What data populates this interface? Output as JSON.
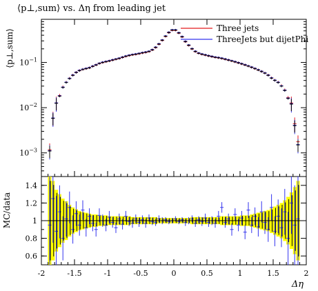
{
  "chart_data": [
    {
      "type": "scatter",
      "title": "⟨p⊥,sum⟩ vs. Δη from leading jet",
      "ylabel": "⟨p⊥,sum⟩",
      "yscale": "log",
      "ylim": [
        0.0003,
        0.9
      ],
      "xlim": [
        -2,
        2
      ],
      "yticks": [
        {
          "v": 0.001,
          "base": "10",
          "exp": "−3"
        },
        {
          "v": 0.01,
          "base": "10",
          "exp": "−2"
        },
        {
          "v": 0.1,
          "base": "10",
          "exp": "−1"
        }
      ],
      "legend_position": "top-right",
      "x": [
        -1.875,
        -1.825,
        -1.775,
        -1.725,
        -1.675,
        -1.625,
        -1.575,
        -1.525,
        -1.475,
        -1.425,
        -1.375,
        -1.325,
        -1.275,
        -1.225,
        -1.175,
        -1.125,
        -1.075,
        -1.025,
        -0.975,
        -0.925,
        -0.875,
        -0.825,
        -0.775,
        -0.725,
        -0.675,
        -0.625,
        -0.575,
        -0.525,
        -0.475,
        -0.425,
        -0.375,
        -0.325,
        -0.275,
        -0.225,
        -0.175,
        -0.125,
        -0.075,
        -0.025,
        0.025,
        0.075,
        0.125,
        0.175,
        0.225,
        0.275,
        0.325,
        0.375,
        0.425,
        0.475,
        0.525,
        0.575,
        0.625,
        0.675,
        0.725,
        0.775,
        0.825,
        0.875,
        0.925,
        0.975,
        1.025,
        1.075,
        1.125,
        1.175,
        1.225,
        1.275,
        1.325,
        1.375,
        1.425,
        1.475,
        1.525,
        1.575,
        1.625,
        1.675,
        1.725,
        1.775,
        1.825,
        1.875
      ],
      "data_values": [
        0.0011,
        0.0058,
        0.0125,
        0.018,
        0.028,
        0.036,
        0.044,
        0.052,
        0.06,
        0.066,
        0.07,
        0.073,
        0.076,
        0.082,
        0.088,
        0.095,
        0.1,
        0.104,
        0.108,
        0.113,
        0.118,
        0.123,
        0.13,
        0.137,
        0.143,
        0.148,
        0.152,
        0.157,
        0.163,
        0.168,
        0.175,
        0.19,
        0.215,
        0.255,
        0.31,
        0.38,
        0.46,
        0.52,
        0.52,
        0.45,
        0.37,
        0.29,
        0.24,
        0.2,
        0.175,
        0.16,
        0.152,
        0.146,
        0.14,
        0.135,
        0.13,
        0.127,
        0.123,
        0.118,
        0.113,
        0.108,
        0.103,
        0.098,
        0.093,
        0.088,
        0.083,
        0.078,
        0.073,
        0.068,
        0.063,
        0.058,
        0.052,
        0.045,
        0.04,
        0.036,
        0.03,
        0.024,
        0.016,
        0.012,
        0.004,
        0.0015
      ],
      "series": [
        {
          "name": "Three jets",
          "color": "#e41a1c",
          "values": [
            0.0012,
            0.006,
            0.013,
            0.019,
            0.029,
            0.037,
            0.045,
            0.053,
            0.061,
            0.067,
            0.071,
            0.074,
            0.077,
            0.083,
            0.089,
            0.096,
            0.101,
            0.105,
            0.109,
            0.114,
            0.119,
            0.124,
            0.131,
            0.138,
            0.144,
            0.149,
            0.153,
            0.158,
            0.164,
            0.169,
            0.176,
            0.191,
            0.216,
            0.256,
            0.311,
            0.381,
            0.461,
            0.521,
            0.521,
            0.451,
            0.371,
            0.291,
            0.241,
            0.201,
            0.176,
            0.161,
            0.153,
            0.147,
            0.141,
            0.136,
            0.131,
            0.128,
            0.124,
            0.119,
            0.114,
            0.109,
            0.104,
            0.099,
            0.094,
            0.089,
            0.084,
            0.079,
            0.074,
            0.069,
            0.064,
            0.059,
            0.053,
            0.046,
            0.041,
            0.037,
            0.031,
            0.025,
            0.017,
            0.013,
            0.0045,
            0.0018
          ]
        },
        {
          "name": "ThreeJets but dijetPhi",
          "color": "#3333ee",
          "values": [
            0.0011,
            0.0058,
            0.0125,
            0.018,
            0.028,
            0.036,
            0.044,
            0.052,
            0.06,
            0.066,
            0.07,
            0.073,
            0.076,
            0.082,
            0.088,
            0.095,
            0.1,
            0.104,
            0.108,
            0.113,
            0.118,
            0.123,
            0.13,
            0.137,
            0.143,
            0.148,
            0.152,
            0.157,
            0.163,
            0.168,
            0.175,
            0.19,
            0.215,
            0.255,
            0.31,
            0.38,
            0.46,
            0.52,
            0.52,
            0.45,
            0.37,
            0.29,
            0.24,
            0.2,
            0.175,
            0.16,
            0.152,
            0.146,
            0.14,
            0.135,
            0.13,
            0.127,
            0.123,
            0.118,
            0.113,
            0.108,
            0.103,
            0.098,
            0.093,
            0.088,
            0.083,
            0.078,
            0.073,
            0.068,
            0.063,
            0.058,
            0.052,
            0.045,
            0.04,
            0.036,
            0.03,
            0.024,
            0.016,
            0.012,
            0.004,
            0.0015
          ]
        }
      ]
    },
    {
      "type": "scatter",
      "title": "",
      "ylabel": "MC/data",
      "xlabel": "Δη",
      "ylim": [
        0.5,
        1.5
      ],
      "xlim": [
        -2,
        2
      ],
      "yticks": [
        0.6,
        0.8,
        1,
        1.2,
        1.4
      ],
      "xticks": [
        {
          "v": -2,
          "label": "-2"
        },
        {
          "v": -1.5,
          "label": "-1.5"
        },
        {
          "v": -1,
          "label": "-1"
        },
        {
          "v": -0.5,
          "label": "-0.5"
        },
        {
          "v": 0,
          "label": "0"
        },
        {
          "v": 0.5,
          "label": "0.5"
        },
        {
          "v": 1,
          "label": "1"
        },
        {
          "v": 1.5,
          "label": "1.5"
        },
        {
          "v": 2,
          "label": "2"
        }
      ],
      "band_color": "#ffff00",
      "band_halfwidth": [
        0.5,
        0.45,
        0.35,
        0.3,
        0.25,
        0.22,
        0.18,
        0.15,
        0.13,
        0.11,
        0.1,
        0.09,
        0.08,
        0.07,
        0.07,
        0.06,
        0.06,
        0.06,
        0.05,
        0.05,
        0.05,
        0.05,
        0.05,
        0.05,
        0.05,
        0.04,
        0.04,
        0.04,
        0.04,
        0.04,
        0.04,
        0.04,
        0.04,
        0.03,
        0.03,
        0.03,
        0.03,
        0.03,
        0.03,
        0.03,
        0.03,
        0.03,
        0.03,
        0.04,
        0.04,
        0.04,
        0.04,
        0.04,
        0.04,
        0.04,
        0.04,
        0.04,
        0.05,
        0.05,
        0.05,
        0.05,
        0.05,
        0.05,
        0.06,
        0.06,
        0.06,
        0.07,
        0.08,
        0.09,
        0.1,
        0.11,
        0.12,
        0.14,
        0.16,
        0.18,
        0.2,
        0.23,
        0.27,
        0.32,
        0.38,
        0.45
      ],
      "ratio_values": [
        0.95,
        1.25,
        0.88,
        1.1,
        0.8,
        1.02,
        1.15,
        0.9,
        1.08,
        0.95,
        1.12,
        0.92,
        1.05,
        0.97,
        0.9,
        1.06,
        1.0,
        0.95,
        1.04,
        0.98,
        0.92,
        1.02,
        0.96,
        1.05,
        0.99,
        0.97,
        1.02,
        0.98,
        1.01,
        0.97,
        1.03,
        0.99,
        0.98,
        1.02,
        1.0,
        1.01,
        0.99,
        1.0,
        1.02,
        0.99,
        1.01,
        0.98,
        1.0,
        1.02,
        0.97,
        1.01,
        0.99,
        1.03,
        0.98,
        1.0,
        0.97,
        1.05,
        1.15,
        0.98,
        1.02,
        0.9,
        1.07,
        0.95,
        1.03,
        0.87,
        1.12,
        0.95,
        1.05,
        0.93,
        1.1,
        0.98,
        0.9,
        1.15,
        0.88,
        1.05,
        0.92,
        1.1,
        0.8,
        1.2,
        0.95,
        1.02
      ],
      "ratio_errors": [
        0.55,
        0.5,
        0.4,
        0.3,
        0.25,
        0.2,
        0.18,
        0.16,
        0.14,
        0.12,
        0.11,
        0.1,
        0.09,
        0.09,
        0.08,
        0.08,
        0.07,
        0.07,
        0.07,
        0.06,
        0.06,
        0.06,
        0.06,
        0.06,
        0.05,
        0.05,
        0.05,
        0.05,
        0.05,
        0.05,
        0.04,
        0.04,
        0.04,
        0.04,
        0.04,
        0.03,
        0.03,
        0.03,
        0.03,
        0.03,
        0.03,
        0.04,
        0.04,
        0.04,
        0.04,
        0.04,
        0.05,
        0.05,
        0.05,
        0.05,
        0.05,
        0.06,
        0.06,
        0.06,
        0.06,
        0.07,
        0.07,
        0.07,
        0.08,
        0.08,
        0.09,
        0.09,
        0.1,
        0.11,
        0.12,
        0.13,
        0.14,
        0.15,
        0.17,
        0.19,
        0.22,
        0.26,
        0.3,
        0.35,
        0.45,
        0.55
      ]
    }
  ]
}
